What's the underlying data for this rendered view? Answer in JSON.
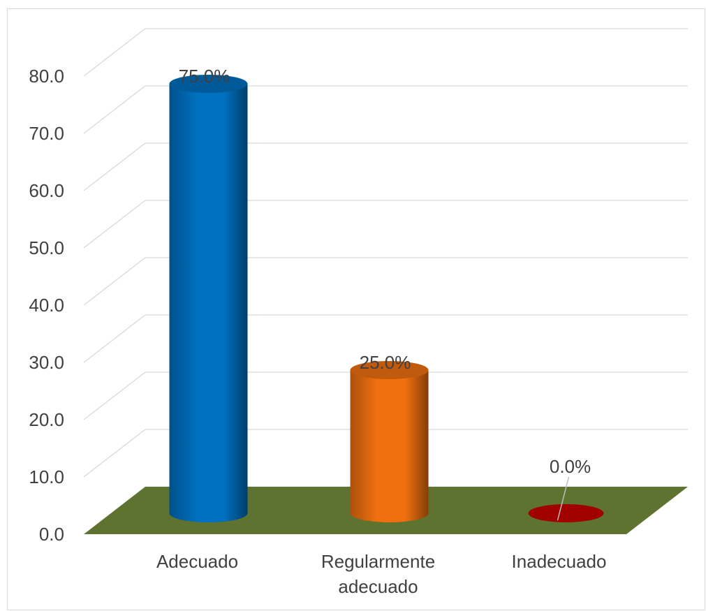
{
  "chart_data": {
    "type": "bar",
    "style": "3d-cylinder",
    "categories": [
      "Adecuado",
      "Regularmente adecuado",
      "Inadecuado"
    ],
    "category_lines": [
      [
        "Adecuado"
      ],
      [
        "Regularmente",
        "adecuado"
      ],
      [
        "Inadecuado"
      ]
    ],
    "values": [
      75.0,
      25.0,
      0.0
    ],
    "data_labels": [
      "75.0%",
      "25.0%",
      "0.0%"
    ],
    "title": "",
    "xlabel": "",
    "ylabel": "",
    "ylim": [
      0,
      80
    ],
    "yticks": [
      "0.0",
      "10.0",
      "20.0",
      "30.0",
      "40.0",
      "50.0",
      "60.0",
      "70.0",
      "80.0"
    ],
    "grid": true,
    "legend": "none",
    "colors": {
      "bars": [
        "#0070C0",
        "#F07010",
        "#A00000"
      ],
      "floor": "#5E7330",
      "grid": "#d9d9d9"
    }
  }
}
